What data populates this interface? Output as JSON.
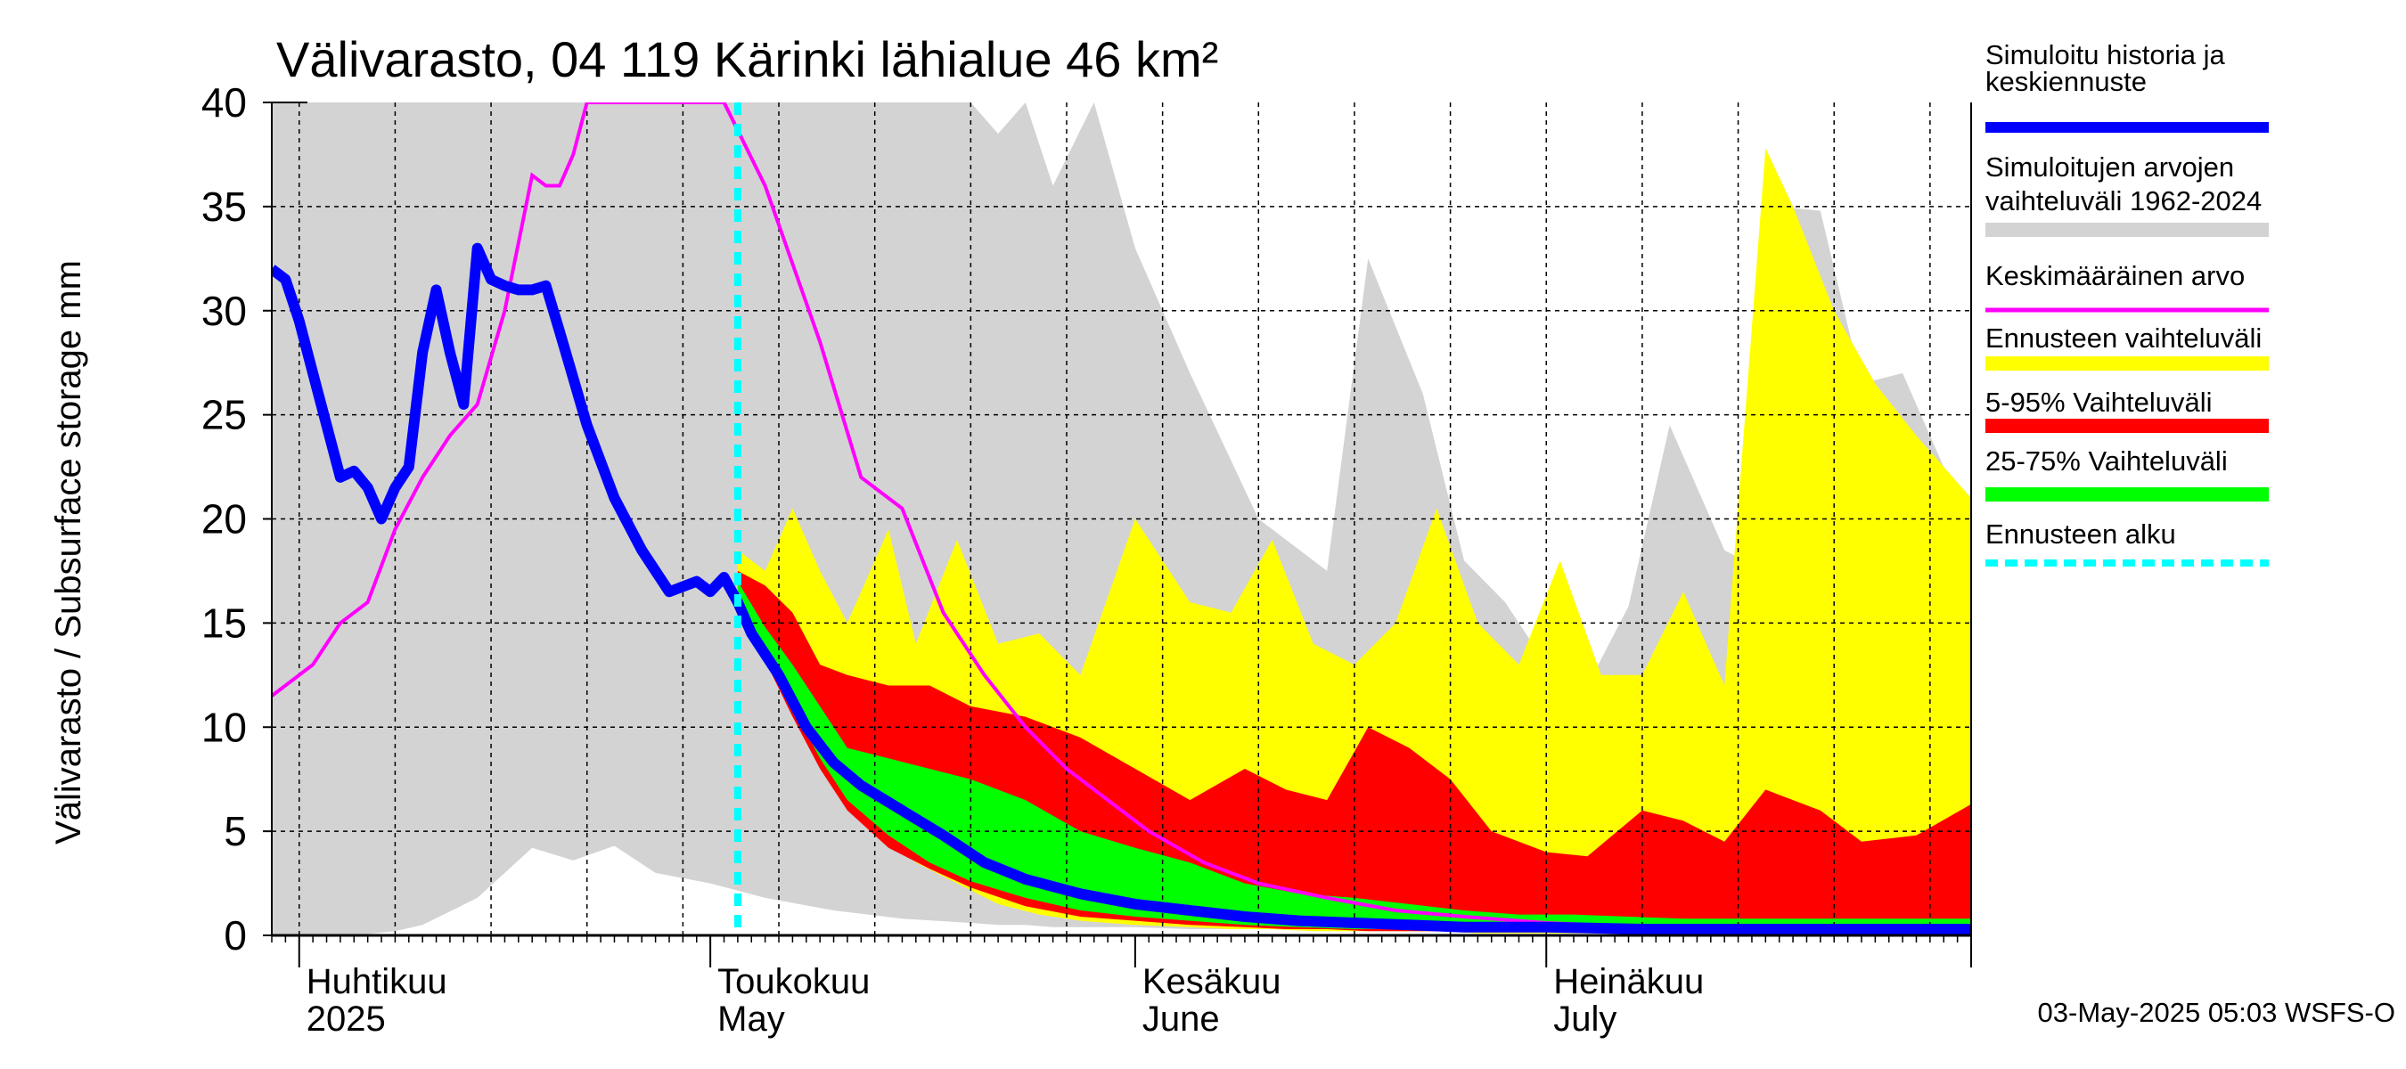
{
  "chart_data": {
    "type": "area",
    "title": "Välivarasto, 04 119 Kärinki lähialue 46 km²",
    "ylabel": "Välivarasto / Subsurface storage  mm",
    "ylim": [
      0,
      40
    ],
    "yticks": [
      0,
      5,
      10,
      15,
      20,
      25,
      30,
      35,
      40
    ],
    "x_start": "2025-03-30",
    "x_end": "2025-08-01",
    "forecast_start": "2025-05-03",
    "grid": true,
    "month_labels": [
      {
        "date": "2025-04-01",
        "fi": "Huhtikuu",
        "en": "2025"
      },
      {
        "date": "2025-05-01",
        "fi": "Toukokuu",
        "en": "May"
      },
      {
        "date": "2025-06-01",
        "fi": "Kesäkuu",
        "en": "June"
      },
      {
        "date": "2025-07-01",
        "fi": "Heinäkuu",
        "en": "July"
      }
    ],
    "legend": [
      {
        "label1": "Simuloitu historia ja",
        "label2": "keskiennuste",
        "color": "#0000ff",
        "kind": "line"
      },
      {
        "label1": "Simuloitujen arvojen",
        "label2": "vaihteluväli 1962-2024",
        "color": "#d3d3d3",
        "kind": "band"
      },
      {
        "label1": "Keskimääräinen arvo",
        "label2": "",
        "color": "#ff00ff",
        "kind": "line"
      },
      {
        "label1": "Ennusteen vaihteluväli",
        "label2": "",
        "color": "#ffff00",
        "kind": "band"
      },
      {
        "label1": "5-95% Vaihteluväli",
        "label2": "",
        "color": "#ff0000",
        "kind": "band"
      },
      {
        "label1": "25-75% Vaihteluväli",
        "label2": "",
        "color": "#00ff00",
        "kind": "band"
      },
      {
        "label1": "Ennusteen alku",
        "label2": "",
        "color": "#00ffff",
        "kind": "dashed"
      }
    ],
    "series": [
      {
        "name": "Simuloitujen arvojen vaihteluväli 1962-2024",
        "role": "hist_range",
        "x": [
          "2025-03-30",
          "2025-04-02",
          "2025-04-05",
          "2025-04-08",
          "2025-04-10",
          "2025-04-14",
          "2025-04-16",
          "2025-04-18",
          "2025-04-21",
          "2025-04-24",
          "2025-04-27",
          "2025-05-01",
          "2025-05-05",
          "2025-05-10",
          "2025-05-15",
          "2025-05-20",
          "2025-05-22",
          "2025-05-24",
          "2025-05-26",
          "2025-05-29",
          "2025-06-01",
          "2025-06-05",
          "2025-06-10",
          "2025-06-15",
          "2025-06-18",
          "2025-06-22",
          "2025-06-25",
          "2025-06-28",
          "2025-07-01",
          "2025-07-04",
          "2025-07-07",
          "2025-07-10",
          "2025-07-14",
          "2025-07-16",
          "2025-07-18",
          "2025-07-21",
          "2025-07-24",
          "2025-07-27",
          "2025-07-30",
          "2025-08-01"
        ],
        "low": [
          0,
          0,
          0,
          0.2,
          0.5,
          1.8,
          3.0,
          4.2,
          3.6,
          4.3,
          3.0,
          2.5,
          1.8,
          1.2,
          0.8,
          0.6,
          0.5,
          0.5,
          0.4,
          0.4,
          0.4,
          0.3,
          0.3,
          0.3,
          0.2,
          0.2,
          0.2,
          0.2,
          0.2,
          0.2,
          0.2,
          0.2,
          0.2,
          0.2,
          0.2,
          0.2,
          0.2,
          0.2,
          0.2,
          0.2
        ],
        "high": [
          40,
          40,
          40,
          40,
          40,
          40,
          40,
          40,
          40,
          40,
          40,
          40,
          40,
          40,
          40,
          40,
          38.5,
          40,
          36.0,
          40,
          33,
          27,
          20,
          17.5,
          32.5,
          26,
          18,
          16,
          13,
          12,
          15.8,
          24.5,
          18.5,
          17.8,
          35.0,
          34.8,
          26.5,
          27.0,
          22.5,
          20.8
        ]
      },
      {
        "name": "Ennusteen vaihteluväli",
        "role": "forecast_range",
        "x": [
          "2025-05-03",
          "2025-05-05",
          "2025-05-07",
          "2025-05-09",
          "2025-05-11",
          "2025-05-14",
          "2025-05-16",
          "2025-05-19",
          "2025-05-22",
          "2025-05-25",
          "2025-05-28",
          "2025-06-01",
          "2025-06-05",
          "2025-06-08",
          "2025-06-11",
          "2025-06-14",
          "2025-06-17",
          "2025-06-20",
          "2025-06-23",
          "2025-06-26",
          "2025-06-29",
          "2025-07-02",
          "2025-07-05",
          "2025-07-08",
          "2025-07-11",
          "2025-07-14",
          "2025-07-17",
          "2025-07-19",
          "2025-07-22",
          "2025-07-25",
          "2025-07-28",
          "2025-08-01"
        ],
        "low": [
          16.5,
          13.5,
          11.0,
          8.5,
          6.5,
          4.5,
          3.5,
          2.5,
          1.5,
          1.0,
          0.7,
          0.5,
          0.4,
          0.3,
          0.3,
          0.2,
          0.2,
          0.2,
          0.2,
          0.1,
          0.1,
          0.1,
          0.1,
          0.1,
          0.1,
          0.1,
          0.1,
          0.1,
          0.1,
          0.1,
          0.1,
          0.1
        ],
        "high": [
          18.5,
          17.5,
          20.5,
          17.5,
          15.0,
          19.5,
          14.0,
          19.0,
          14.0,
          14.5,
          12.5,
          20.0,
          16.0,
          15.5,
          19.0,
          14.0,
          13.0,
          15.0,
          20.5,
          15.0,
          13.0,
          18.0,
          12.5,
          12.5,
          16.5,
          12.0,
          37.8,
          35.0,
          30.0,
          26.5,
          24.0,
          21.0
        ]
      },
      {
        "name": "5-95% Vaihteluväli",
        "role": "band_5_95",
        "x": [
          "2025-05-03",
          "2025-05-05",
          "2025-05-07",
          "2025-05-09",
          "2025-05-11",
          "2025-05-14",
          "2025-05-17",
          "2025-05-20",
          "2025-05-24",
          "2025-05-28",
          "2025-06-01",
          "2025-06-05",
          "2025-06-09",
          "2025-06-12",
          "2025-06-15",
          "2025-06-18",
          "2025-06-21",
          "2025-06-24",
          "2025-06-27",
          "2025-07-01",
          "2025-07-04",
          "2025-07-08",
          "2025-07-11",
          "2025-07-14",
          "2025-07-17",
          "2025-07-21",
          "2025-07-24",
          "2025-07-28",
          "2025-08-01"
        ],
        "low": [
          16.0,
          13.2,
          10.5,
          8.0,
          6.0,
          4.2,
          3.2,
          2.3,
          1.4,
          0.9,
          0.7,
          0.5,
          0.4,
          0.3,
          0.3,
          0.2,
          0.2,
          0.2,
          0.2,
          0.2,
          0.2,
          0.2,
          0.2,
          0.2,
          0.2,
          0.2,
          0.2,
          0.2,
          0.2
        ],
        "high": [
          17.5,
          16.8,
          15.5,
          13.0,
          12.5,
          12.0,
          12.0,
          11.0,
          10.5,
          9.5,
          8.0,
          6.5,
          8.0,
          7.0,
          6.5,
          10.0,
          9.0,
          7.5,
          5.0,
          4.0,
          3.8,
          6.0,
          5.5,
          4.5,
          7.0,
          6.0,
          4.5,
          4.8,
          6.3
        ]
      },
      {
        "name": "25-75% Vaihteluväli",
        "role": "band_25_75",
        "x": [
          "2025-05-03",
          "2025-05-05",
          "2025-05-07",
          "2025-05-09",
          "2025-05-11",
          "2025-05-14",
          "2025-05-17",
          "2025-05-20",
          "2025-05-24",
          "2025-05-28",
          "2025-06-01",
          "2025-06-05",
          "2025-06-09",
          "2025-06-13",
          "2025-06-17",
          "2025-06-21",
          "2025-06-25",
          "2025-06-29",
          "2025-07-03",
          "2025-07-07",
          "2025-07-11",
          "2025-07-15",
          "2025-07-19",
          "2025-07-23",
          "2025-07-27",
          "2025-08-01"
        ],
        "low": [
          16.5,
          13.5,
          11.0,
          8.5,
          6.5,
          4.8,
          3.5,
          2.6,
          1.8,
          1.2,
          0.9,
          0.7,
          0.5,
          0.4,
          0.3,
          0.3,
          0.3,
          0.3,
          0.3,
          0.3,
          0.3,
          0.3,
          0.3,
          0.3,
          0.3,
          0.3
        ],
        "high": [
          17.0,
          14.8,
          13.0,
          11.0,
          9.0,
          8.5,
          8.0,
          7.5,
          6.5,
          5.0,
          4.2,
          3.5,
          2.5,
          2.0,
          1.8,
          1.5,
          1.2,
          1.0,
          1.0,
          0.9,
          0.8,
          0.8,
          0.8,
          0.8,
          0.8,
          0.8
        ]
      },
      {
        "name": "Keskimääräinen arvo",
        "role": "mean",
        "x": [
          "2025-03-30",
          "2025-04-02",
          "2025-04-04",
          "2025-04-06",
          "2025-04-08",
          "2025-04-10",
          "2025-04-12",
          "2025-04-14",
          "2025-04-16",
          "2025-04-18",
          "2025-04-19",
          "2025-04-20",
          "2025-04-21",
          "2025-04-22",
          "2025-04-23",
          "2025-04-24",
          "2025-04-25",
          "2025-04-26",
          "2025-05-02",
          "2025-05-05",
          "2025-05-09",
          "2025-05-12",
          "2025-05-15",
          "2025-05-18",
          "2025-05-21",
          "2025-05-24",
          "2025-05-27",
          "2025-05-30",
          "2025-06-02",
          "2025-06-06",
          "2025-06-10",
          "2025-06-15",
          "2025-06-20",
          "2025-06-25",
          "2025-07-01",
          "2025-07-08",
          "2025-07-15",
          "2025-07-22",
          "2025-08-01"
        ],
        "y": [
          11.5,
          13.0,
          15.0,
          16.0,
          19.5,
          22.0,
          24.0,
          25.5,
          30.0,
          36.5,
          36.0,
          36.0,
          37.5,
          40.0,
          40.0,
          40.0,
          40.0,
          40.0,
          40.0,
          36.0,
          28.5,
          22.0,
          20.5,
          15.5,
          12.5,
          10.0,
          8.0,
          6.5,
          5.0,
          3.5,
          2.5,
          1.8,
          1.2,
          0.9,
          0.6,
          0.4,
          0.3,
          0.2,
          0.2
        ]
      },
      {
        "name": "Simuloitu historia ja keskiennuste",
        "role": "median",
        "x": [
          "2025-03-30",
          "2025-03-31",
          "2025-04-01",
          "2025-04-02",
          "2025-04-03",
          "2025-04-04",
          "2025-04-05",
          "2025-04-06",
          "2025-04-07",
          "2025-04-08",
          "2025-04-09",
          "2025-04-10",
          "2025-04-11",
          "2025-04-12",
          "2025-04-13",
          "2025-04-14",
          "2025-04-15",
          "2025-04-16",
          "2025-04-17",
          "2025-04-18",
          "2025-04-19",
          "2025-04-20",
          "2025-04-22",
          "2025-04-24",
          "2025-04-26",
          "2025-04-28",
          "2025-04-30",
          "2025-05-01",
          "2025-05-02",
          "2025-05-03",
          "2025-05-04",
          "2025-05-06",
          "2025-05-08",
          "2025-05-10",
          "2025-05-12",
          "2025-05-15",
          "2025-05-18",
          "2025-05-21",
          "2025-05-24",
          "2025-05-28",
          "2025-06-01",
          "2025-06-05",
          "2025-06-09",
          "2025-06-13",
          "2025-06-17",
          "2025-06-21",
          "2025-06-25",
          "2025-07-01",
          "2025-07-08",
          "2025-07-15",
          "2025-07-22",
          "2025-08-01"
        ],
        "y": [
          32.0,
          31.5,
          29.5,
          27.0,
          24.5,
          22.0,
          22.3,
          21.5,
          20.0,
          21.5,
          22.5,
          28.0,
          31.0,
          28.0,
          25.5,
          33.0,
          31.5,
          31.2,
          31.0,
          31.0,
          31.2,
          29.0,
          24.5,
          21.0,
          18.5,
          16.5,
          17.0,
          16.5,
          17.2,
          16.0,
          14.5,
          12.5,
          10.0,
          8.3,
          7.2,
          6.0,
          4.8,
          3.5,
          2.7,
          2.0,
          1.5,
          1.2,
          0.9,
          0.7,
          0.6,
          0.5,
          0.4,
          0.4,
          0.3,
          0.3,
          0.3,
          0.3
        ]
      }
    ]
  },
  "footer": {
    "timestamp": "03-May-2025 05:03 WSFS-O"
  }
}
